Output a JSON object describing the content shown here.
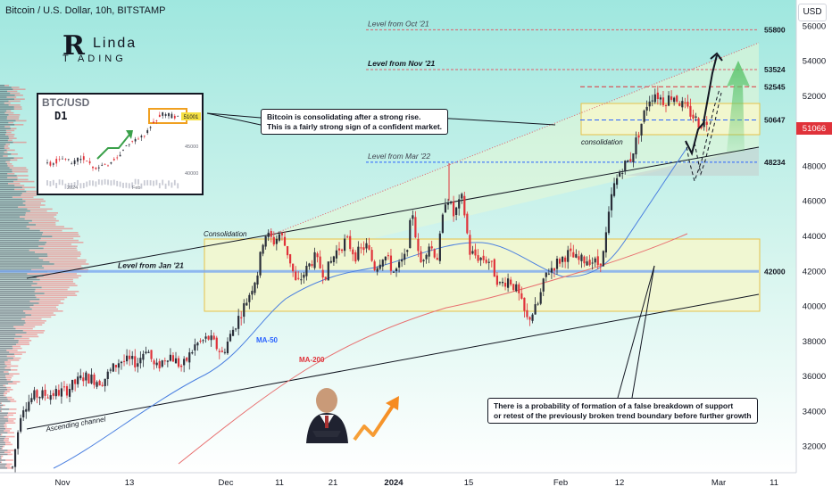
{
  "header": {
    "title": "Bitcoin / U.S. Dollar, 10h, BITSTAMP",
    "currency_button": "USD"
  },
  "logo": {
    "letter": "R",
    "word": "Linda",
    "subline": "T ADING"
  },
  "colors": {
    "up": "#26a69a",
    "down": "#ef5350",
    "candle_up": "#2a2e39",
    "candle_down": "#e0323a",
    "resistance": "#e05c6a",
    "support": "#2962ff",
    "ma50": "#4a7fe0",
    "ma200": "#e87070",
    "zone_fill": "#f3f7c9",
    "zone_border": "#e6c24a",
    "price_tag": "#e0323a",
    "arrow_green": "#5cc46c"
  },
  "levels": [
    {
      "label": "Level from Oct '21",
      "value": "55800"
    },
    {
      "label": "Level from Nov '21",
      "value": "53524"
    },
    {
      "label": "",
      "value": "52545"
    },
    {
      "label": "",
      "value": "50647"
    },
    {
      "label": "Level from Mar '22",
      "value": "48234"
    },
    {
      "label": "Level from Jan '21",
      "value": "42000"
    }
  ],
  "current_price": "51066",
  "annotations": {
    "consolidation_top": "Consolidation",
    "consolidation_small": "consolidation",
    "ma50": "MA-50",
    "ma200": "MA-200",
    "channel": "Ascending channel",
    "callout_top": [
      "Bitcoin is consolidating after a strong rise.",
      "This is a fairly strong sign of a confident market."
    ],
    "callout_bottom": [
      "There is a probability of formation of a false breakdown of support",
      "or retest of the previously broken trend boundary before further growth"
    ]
  },
  "inset": {
    "title": "BTC/USD",
    "timeframe": "D1",
    "price_tag": "51001",
    "y_labels": [
      "45000",
      "40000"
    ],
    "x_labels": [
      "2024",
      "Feb"
    ]
  },
  "chart_data": {
    "type": "candlestick",
    "title": "Bitcoin / U.S. Dollar, 10h, BITSTAMP",
    "ylim": [
      30500,
      57500
    ],
    "y_ticks": [
      "32000",
      "34000",
      "36000",
      "38000",
      "40000",
      "42000",
      "44000",
      "46000",
      "48000",
      "50000",
      "52000",
      "54000",
      "56000"
    ],
    "x_ticks": [
      "Nov",
      "13",
      "Dec",
      "11",
      "21",
      "2024",
      "15",
      "Feb",
      "12",
      "Mar",
      "11"
    ],
    "price_path": [
      {
        "t": 0,
        "v": 30800
      },
      {
        "t": 10,
        "v": 34200
      },
      {
        "t": 25,
        "v": 34900
      },
      {
        "t": 45,
        "v": 35000
      },
      {
        "t": 60,
        "v": 35200
      },
      {
        "t": 80,
        "v": 36000
      },
      {
        "t": 100,
        "v": 35700
      },
      {
        "t": 120,
        "v": 36900
      },
      {
        "t": 140,
        "v": 36800
      },
      {
        "t": 150,
        "v": 37700
      },
      {
        "t": 160,
        "v": 36400
      },
      {
        "t": 175,
        "v": 37300
      },
      {
        "t": 190,
        "v": 36500
      },
      {
        "t": 205,
        "v": 37800
      },
      {
        "t": 220,
        "v": 38200
      },
      {
        "t": 235,
        "v": 37300
      },
      {
        "t": 250,
        "v": 39000
      },
      {
        "t": 262,
        "v": 40300
      },
      {
        "t": 275,
        "v": 42000
      },
      {
        "t": 282,
        "v": 44200
      },
      {
        "t": 293,
        "v": 43700
      },
      {
        "t": 300,
        "v": 44200
      },
      {
        "t": 310,
        "v": 42800
      },
      {
        "t": 318,
        "v": 41200
      },
      {
        "t": 328,
        "v": 42000
      },
      {
        "t": 338,
        "v": 42800
      },
      {
        "t": 350,
        "v": 41800
      },
      {
        "t": 362,
        "v": 43100
      },
      {
        "t": 374,
        "v": 43800
      },
      {
        "t": 384,
        "v": 42900
      },
      {
        "t": 396,
        "v": 43500
      },
      {
        "t": 406,
        "v": 42200
      },
      {
        "t": 416,
        "v": 43000
      },
      {
        "t": 428,
        "v": 41900
      },
      {
        "t": 440,
        "v": 42800
      },
      {
        "t": 448,
        "v": 45500
      },
      {
        "t": 456,
        "v": 42300
      },
      {
        "t": 466,
        "v": 43600
      },
      {
        "t": 476,
        "v": 42800
      },
      {
        "t": 486,
        "v": 46500
      },
      {
        "t": 494,
        "v": 45200
      },
      {
        "t": 504,
        "v": 46200
      },
      {
        "t": 512,
        "v": 43100
      },
      {
        "t": 522,
        "v": 42800
      },
      {
        "t": 534,
        "v": 42600
      },
      {
        "t": 546,
        "v": 41200
      },
      {
        "t": 556,
        "v": 41600
      },
      {
        "t": 566,
        "v": 40800
      },
      {
        "t": 576,
        "v": 39200
      },
      {
        "t": 588,
        "v": 40000
      },
      {
        "t": 598,
        "v": 41900
      },
      {
        "t": 610,
        "v": 42500
      },
      {
        "t": 622,
        "v": 43000
      },
      {
        "t": 634,
        "v": 42600
      },
      {
        "t": 646,
        "v": 42700
      },
      {
        "t": 656,
        "v": 42400
      },
      {
        "t": 662,
        "v": 43000
      },
      {
        "t": 672,
        "v": 46600
      },
      {
        "t": 682,
        "v": 47900
      },
      {
        "t": 692,
        "v": 48400
      },
      {
        "t": 702,
        "v": 50000
      },
      {
        "t": 712,
        "v": 51800
      },
      {
        "t": 720,
        "v": 52200
      },
      {
        "t": 730,
        "v": 51700
      },
      {
        "t": 740,
        "v": 52100
      },
      {
        "t": 750,
        "v": 51500
      },
      {
        "t": 760,
        "v": 51000
      },
      {
        "t": 770,
        "v": 50400
      },
      {
        "t": 778,
        "v": 50600
      }
    ]
  }
}
